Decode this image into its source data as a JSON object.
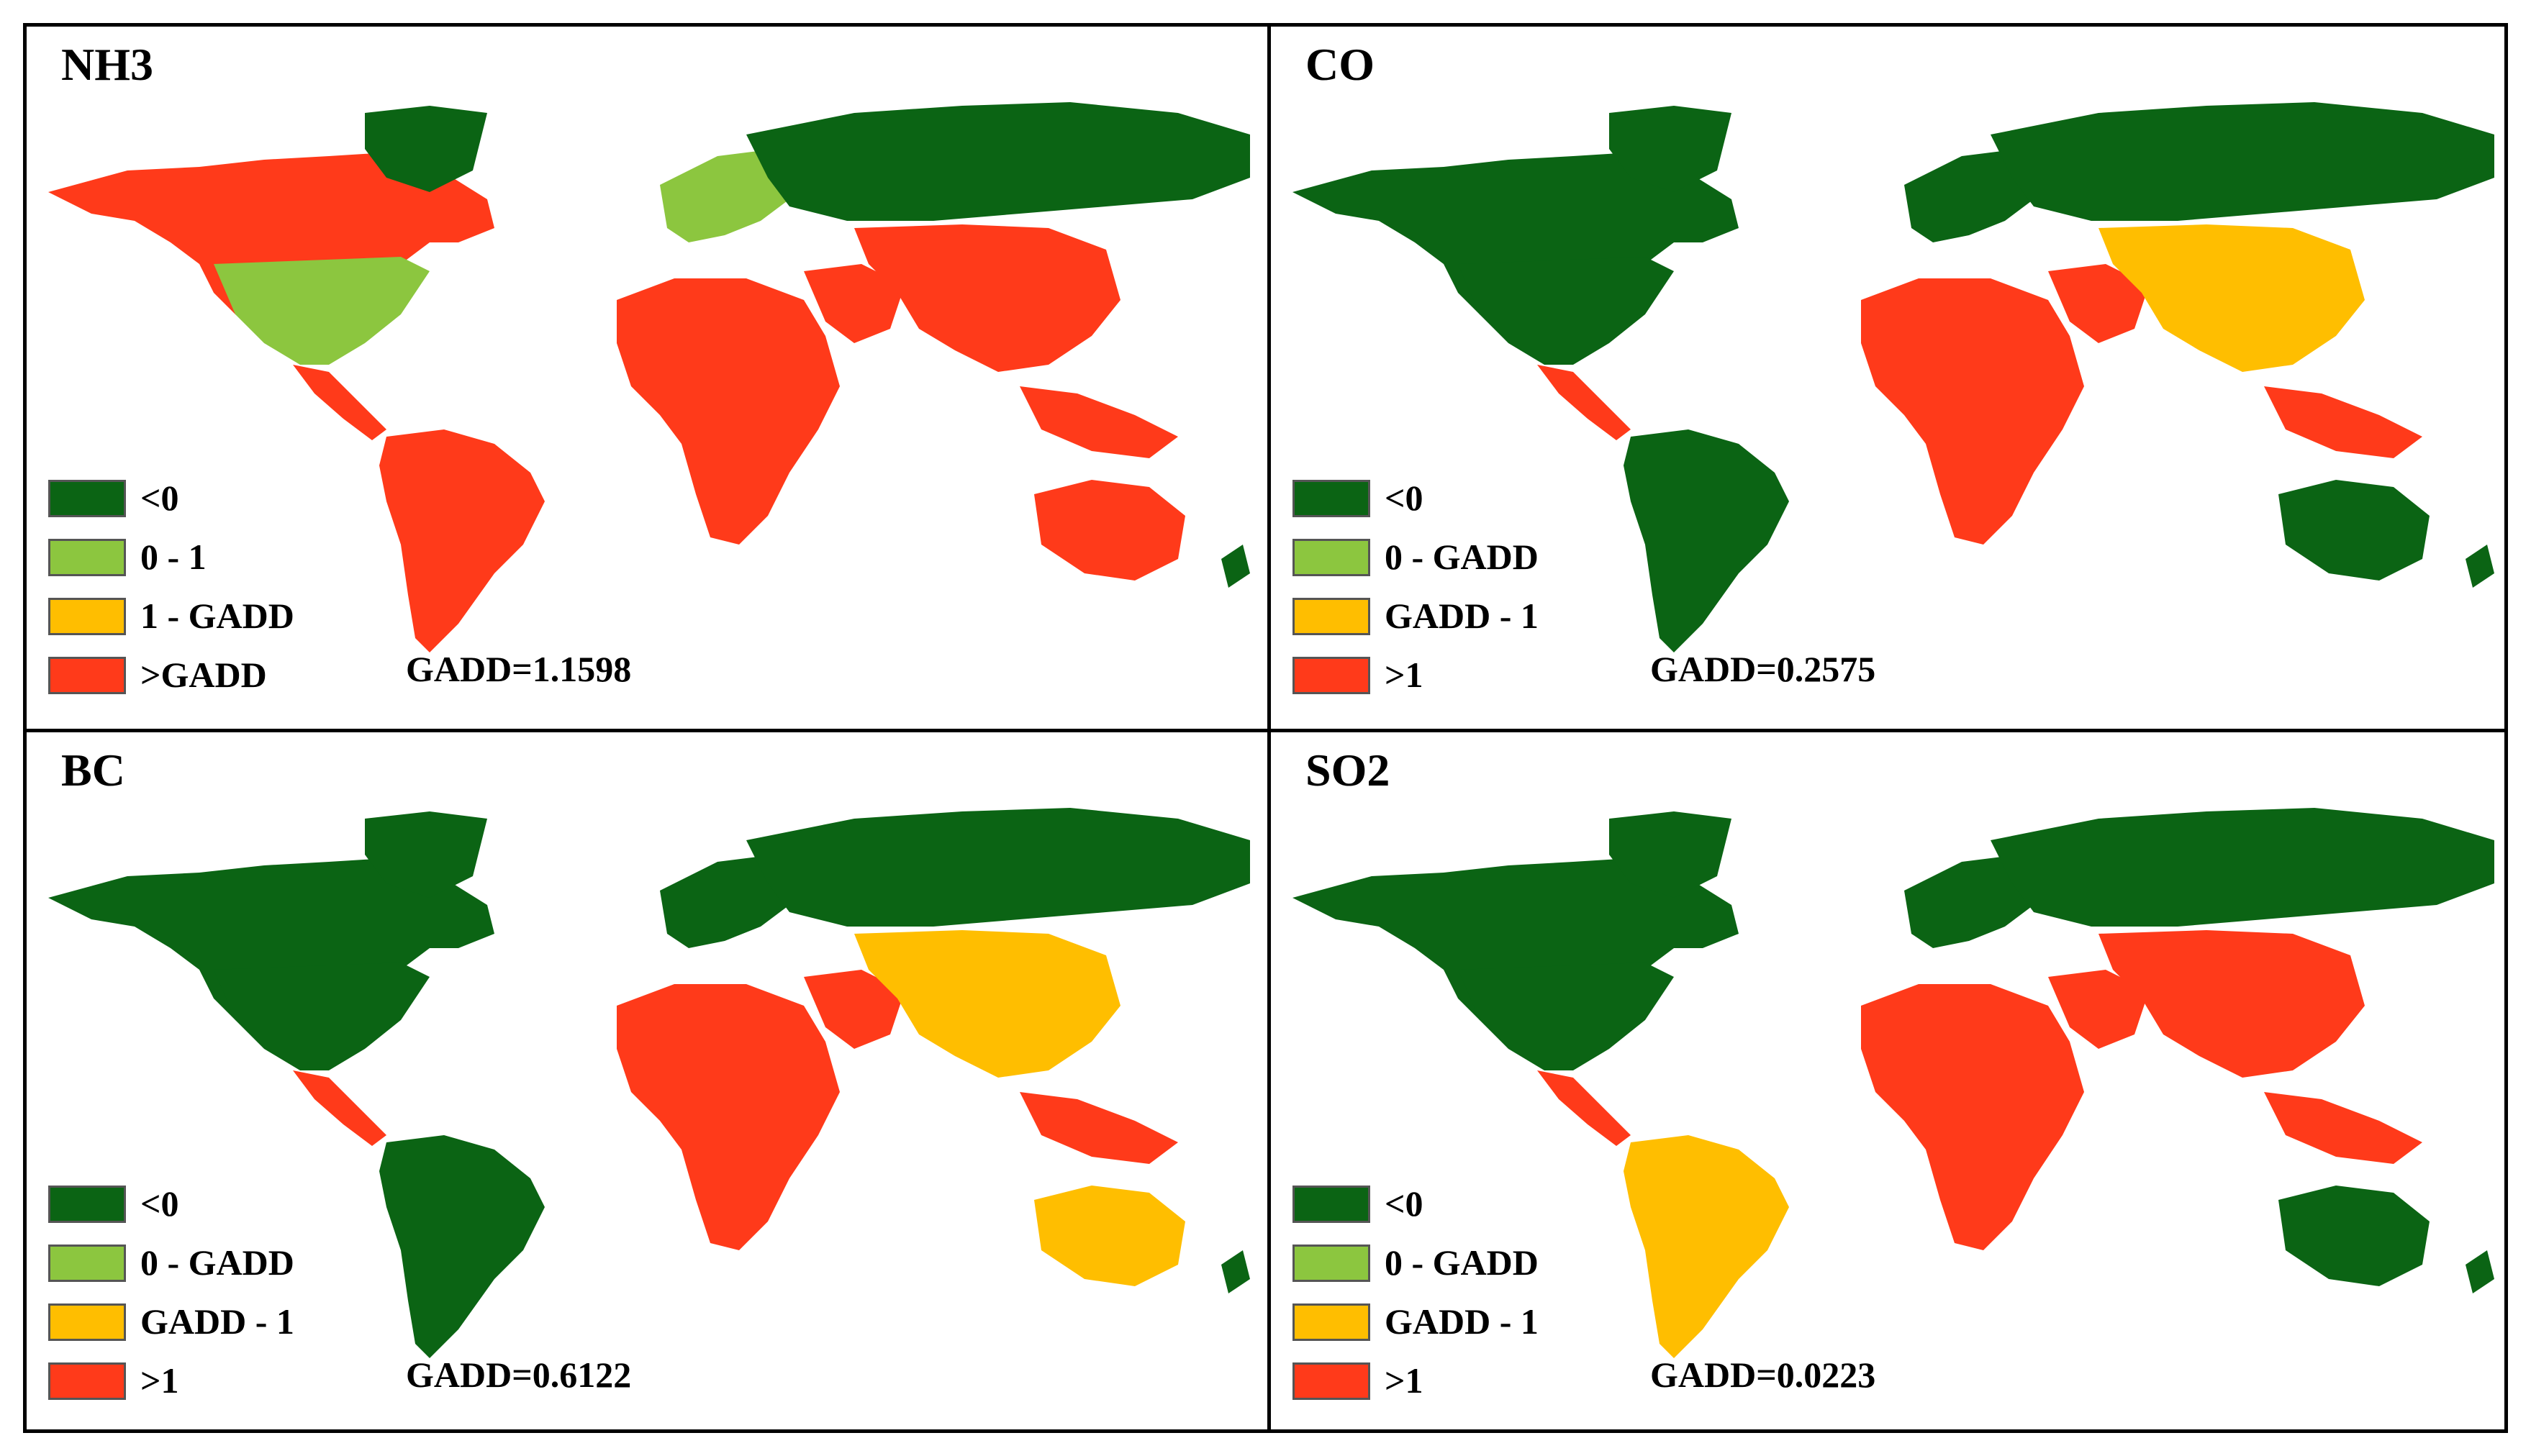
{
  "colors": {
    "dark_green": "#0b6414",
    "light_green": "#8cc63f",
    "orange": "#ffbe00",
    "red": "#ff3a1a"
  },
  "panels": [
    {
      "title": "NH3",
      "gadd": "GADD=1.1598",
      "legend": [
        "<0",
        "0 - 1",
        "1 - GADD",
        ">GADD"
      ],
      "dominant": {
        "north_america": "red",
        "usa": "light_green",
        "south_america": "red",
        "europe": "light_green",
        "russia": "dark_green",
        "africa": "red",
        "asia": "red",
        "australia": "red"
      }
    },
    {
      "title": "CO",
      "gadd": "GADD=0.2575",
      "legend": [
        "<0",
        "0 - GADD",
        "GADD - 1",
        ">1"
      ],
      "dominant": {
        "north_america": "dark_green",
        "usa": "dark_green",
        "south_america": "dark_green",
        "europe": "dark_green",
        "russia": "dark_green",
        "africa": "red",
        "asia": "orange",
        "australia": "dark_green"
      }
    },
    {
      "title": "BC",
      "gadd": "GADD=0.6122",
      "legend": [
        "<0",
        "0 - GADD",
        "GADD - 1",
        ">1"
      ],
      "dominant": {
        "north_america": "dark_green",
        "usa": "dark_green",
        "south_america": "dark_green",
        "europe": "dark_green",
        "russia": "dark_green",
        "africa": "red",
        "asia": "orange",
        "australia": "orange"
      }
    },
    {
      "title": "SO2",
      "gadd": "GADD=0.0223",
      "legend": [
        "<0",
        "0 - GADD",
        "GADD - 1",
        ">1"
      ],
      "dominant": {
        "north_america": "dark_green",
        "usa": "dark_green",
        "south_america": "orange",
        "europe": "dark_green",
        "russia": "dark_green",
        "africa": "red",
        "asia": "red",
        "australia": "dark_green"
      }
    }
  ]
}
